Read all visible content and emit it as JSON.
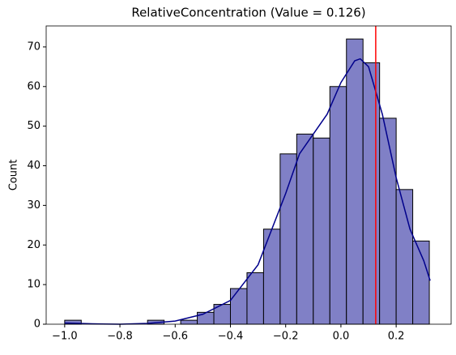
{
  "chart_data": {
    "type": "histogram",
    "title": "RelativeConcentration (Value = 0.126)",
    "ylabel": "Count",
    "bins": [
      -1.0,
      -0.94,
      -0.88,
      -0.82,
      -0.76,
      -0.7,
      -0.64,
      -0.58,
      -0.52,
      -0.46,
      -0.4,
      -0.34,
      -0.28,
      -0.22,
      -0.16,
      -0.1,
      -0.04,
      0.02,
      0.08,
      0.14,
      0.2,
      0.26,
      0.32
    ],
    "values": [
      1,
      0,
      0,
      0,
      0,
      1,
      0,
      1,
      3,
      5,
      9,
      13,
      24,
      43,
      48,
      47,
      60,
      72,
      66,
      52,
      34,
      21
    ],
    "color": "#8080c6",
    "edgecolor": "#000000",
    "kde": {
      "color": "#00008b",
      "x": [
        -1.0,
        -0.9,
        -0.8,
        -0.7,
        -0.6,
        -0.5,
        -0.4,
        -0.3,
        -0.2,
        -0.15,
        -0.1,
        -0.05,
        0.0,
        0.05,
        0.07,
        0.1,
        0.15,
        0.2,
        0.25,
        0.3,
        0.323
      ],
      "y": [
        0.3,
        0.1,
        0,
        0.2,
        0.8,
        2.5,
        6,
        15,
        33,
        43,
        48,
        53,
        61,
        66.5,
        67,
        65,
        53,
        37,
        24,
        16,
        11
      ]
    },
    "vline": {
      "x": 0.126,
      "color": "#ff0000"
    },
    "xlim": [
      -1.067,
      0.399
    ],
    "ylim": [
      0,
      75.3
    ],
    "xticks": [
      {
        "value": -1.0,
        "label": "−1.0"
      },
      {
        "value": -0.8,
        "label": "−0.8"
      },
      {
        "value": -0.6,
        "label": "−0.6"
      },
      {
        "value": -0.4,
        "label": "−0.4"
      },
      {
        "value": -0.2,
        "label": "−0.2"
      },
      {
        "value": 0.0,
        "label": "0.0"
      },
      0.2
    ],
    "yticks": [
      0,
      10,
      20,
      30,
      40,
      50,
      60,
      70
    ]
  }
}
